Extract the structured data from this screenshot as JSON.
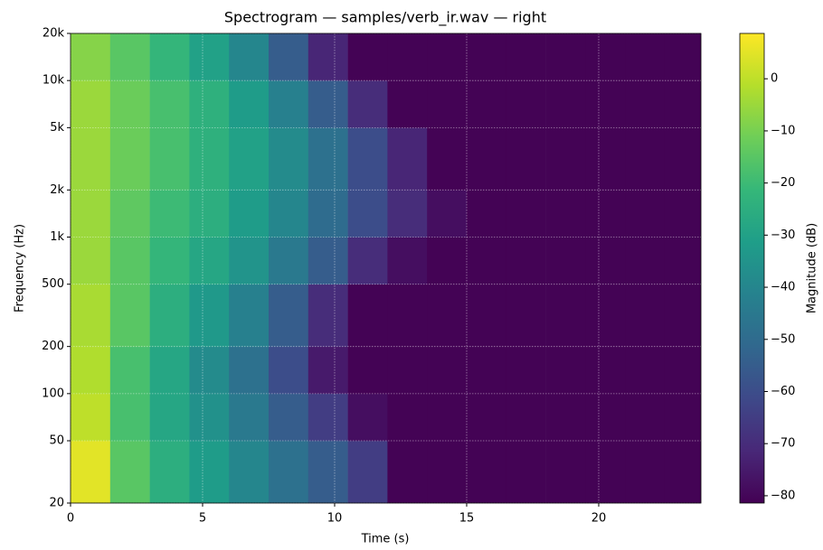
{
  "chart_data": {
    "type": "heatmap",
    "title": "Spectrogram — samples/verb_ir.wav — right",
    "xlabel": "Time (s)",
    "ylabel": "Frequency (Hz)",
    "colorbar_label": "Magnitude (dB)",
    "colormap": "viridis",
    "yscale": "log",
    "grid": true,
    "time_bins": [
      0,
      1.5,
      3,
      4.5,
      6,
      7.5,
      9,
      10.5,
      12,
      13.5,
      15,
      16.5,
      18,
      19.5,
      21,
      22.5,
      23.87
    ],
    "freq_bins": [
      20,
      50,
      100,
      200,
      500,
      1000,
      2000,
      5000,
      10000,
      20000
    ],
    "values": [
      [
        5,
        -15,
        -25,
        -32,
        -40,
        -48,
        -55,
        -65,
        -81,
        -81,
        -81,
        -81,
        -81,
        -81,
        -81,
        -81
      ],
      [
        0,
        -18,
        -28,
        -36,
        -45,
        -55,
        -65,
        -78,
        -81,
        -81,
        -81,
        -81,
        -81,
        -81,
        -81,
        -81
      ],
      [
        -2,
        -18,
        -28,
        -38,
        -48,
        -60,
        -75,
        -81,
        -81,
        -81,
        -81,
        -81,
        -81,
        -81,
        -81,
        -81
      ],
      [
        -3,
        -15,
        -25,
        -33,
        -42,
        -55,
        -70,
        -81,
        -81,
        -81,
        -81,
        -81,
        -81,
        -81,
        -81,
        -81
      ],
      [
        -5,
        -15,
        -22,
        -28,
        -35,
        -45,
        -55,
        -70,
        -78,
        -81,
        -81,
        -81,
        -81,
        -81,
        -81,
        -81
      ],
      [
        -5,
        -14,
        -20,
        -25,
        -32,
        -40,
        -50,
        -60,
        -70,
        -78,
        -81,
        -81,
        -81,
        -81,
        -81,
        -81
      ],
      [
        -5,
        -12,
        -18,
        -24,
        -30,
        -38,
        -48,
        -60,
        -72,
        -81,
        -81,
        -81,
        -81,
        -81,
        -81,
        -81
      ],
      [
        -5,
        -12,
        -18,
        -24,
        -32,
        -42,
        -55,
        -70,
        -81,
        -81,
        -81,
        -81,
        -81,
        -81,
        -81,
        -81
      ],
      [
        -8,
        -15,
        -22,
        -30,
        -40,
        -55,
        -72,
        -81,
        -81,
        -81,
        -81,
        -81,
        -81,
        -81,
        -81,
        -81
      ]
    ],
    "xlim": [
      0,
      23.87
    ],
    "xticks": [
      0,
      5,
      10,
      15,
      20
    ],
    "ylim": [
      20,
      20000
    ],
    "yticks": [
      20,
      50,
      100,
      200,
      500,
      {
        "value": 1000,
        "label": "1k"
      },
      {
        "value": 2000,
        "label": "2k"
      },
      {
        "value": 5000,
        "label": "5k"
      },
      {
        "value": 10000,
        "label": "10k"
      },
      {
        "value": 20000,
        "label": "20k"
      }
    ],
    "clim": [
      -81.4,
      8.7
    ],
    "cticks": [
      0,
      {
        "value": -10,
        "label": "−10"
      },
      {
        "value": -20,
        "label": "−20"
      },
      {
        "value": -30,
        "label": "−30"
      },
      {
        "value": -40,
        "label": "−40"
      },
      {
        "value": -50,
        "label": "−50"
      },
      {
        "value": -60,
        "label": "−60"
      },
      {
        "value": -70,
        "label": "−70"
      },
      {
        "value": -80,
        "label": "−80"
      }
    ]
  }
}
